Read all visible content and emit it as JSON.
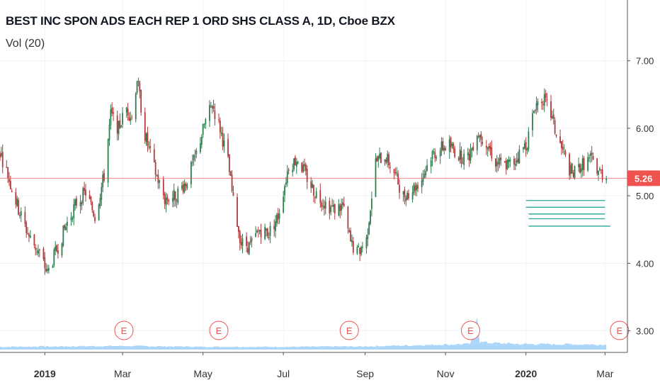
{
  "title": "BEST INC SPON ADS EACH REP 1 ORD SHS CLASS A, 1D, Cboe BZX",
  "volume_label": "Vol (20)",
  "colors": {
    "up": "#2e7d4f",
    "down": "#b23a3a",
    "volume": "#90caf9",
    "price_line": "#ef5350",
    "price_tag": "#ef5350",
    "earnings": "#ef5350",
    "levels": "#26a69a",
    "axis_text": "#333333"
  },
  "chart_data": {
    "type": "candlestick",
    "title": "BEST INC SPON ADS EACH REP 1 ORD SHS CLASS A, 1D, Cboe BZX",
    "x_range": [
      "2018-11-28",
      "2020-03-18"
    ],
    "ylim": [
      2.68,
      7.9
    ],
    "y_ticks": [
      3.0,
      4.0,
      5.0,
      6.0,
      7.0
    ],
    "y_tick_labels": [
      "3.00",
      "4.00",
      "5.00",
      "6.00",
      "7.00"
    ],
    "x_ticks": [
      {
        "label": "2019",
        "date": "2019-01-01",
        "bold": true
      },
      {
        "label": "Mar",
        "date": "2019-03-01",
        "bold": false
      },
      {
        "label": "May",
        "date": "2019-05-01",
        "bold": false
      },
      {
        "label": "Jul",
        "date": "2019-07-01",
        "bold": false
      },
      {
        "label": "Sep",
        "date": "2019-09-01",
        "bold": false
      },
      {
        "label": "Nov",
        "date": "2019-11-01",
        "bold": false
      },
      {
        "label": "2020",
        "date": "2020-01-01",
        "bold": true
      },
      {
        "label": "Mar",
        "date": "2020-03-01",
        "bold": false
      }
    ],
    "last_price": 5.26,
    "last_price_label": "5.26",
    "earnings_marker": "E",
    "earnings_dates": [
      "2019-03-02",
      "2019-05-13",
      "2019-08-20",
      "2019-11-20",
      "2020-03-12"
    ],
    "levels": [
      {
        "y": 4.93,
        "from": "2020-01-01",
        "to": "2020-03-01"
      },
      {
        "y": 4.83,
        "from": "2020-01-01",
        "to": "2020-03-01"
      },
      {
        "y": 4.73,
        "from": "2020-01-03",
        "to": "2020-03-01"
      },
      {
        "y": 4.66,
        "from": "2020-01-03",
        "to": "2020-03-01"
      },
      {
        "y": 4.55,
        "from": "2020-01-03",
        "to": "2020-03-05"
      }
    ],
    "price_path": [
      [
        "2018-11-28",
        5.65
      ],
      [
        "2018-12-04",
        5.3
      ],
      [
        "2018-12-12",
        4.8
      ],
      [
        "2018-12-20",
        4.4
      ],
      [
        "2018-12-28",
        4.15
      ],
      [
        "2019-01-03",
        3.85
      ],
      [
        "2019-01-10",
        4.2
      ],
      [
        "2019-01-18",
        4.6
      ],
      [
        "2019-01-25",
        4.9
      ],
      [
        "2019-02-01",
        5.05
      ],
      [
        "2019-02-08",
        4.7
      ],
      [
        "2019-02-15",
        5.3
      ],
      [
        "2019-02-20",
        6.2
      ],
      [
        "2019-02-26",
        6.0
      ],
      [
        "2019-03-04",
        6.3
      ],
      [
        "2019-03-08",
        6.15
      ],
      [
        "2019-03-12",
        6.75
      ],
      [
        "2019-03-18",
        5.9
      ],
      [
        "2019-03-25",
        5.4
      ],
      [
        "2019-04-02",
        4.95
      ],
      [
        "2019-04-10",
        5.0
      ],
      [
        "2019-04-18",
        5.2
      ],
      [
        "2019-04-25",
        5.55
      ],
      [
        "2019-05-02",
        6.05
      ],
      [
        "2019-05-08",
        6.35
      ],
      [
        "2019-05-14",
        6.0
      ],
      [
        "2019-05-20",
        5.5
      ],
      [
        "2019-05-24",
        4.9
      ],
      [
        "2019-05-30",
        4.3
      ],
      [
        "2019-06-06",
        4.25
      ],
      [
        "2019-06-13",
        4.5
      ],
      [
        "2019-06-20",
        4.45
      ],
      [
        "2019-06-27",
        4.7
      ],
      [
        "2019-07-05",
        5.45
      ],
      [
        "2019-07-12",
        5.55
      ],
      [
        "2019-07-18",
        5.3
      ],
      [
        "2019-07-25",
        5.05
      ],
      [
        "2019-08-01",
        4.9
      ],
      [
        "2019-08-08",
        4.8
      ],
      [
        "2019-08-15",
        4.85
      ],
      [
        "2019-08-21",
        4.3
      ],
      [
        "2019-08-26",
        4.15
      ],
      [
        "2019-09-02",
        4.35
      ],
      [
        "2019-09-09",
        5.5
      ],
      [
        "2019-09-16",
        5.6
      ],
      [
        "2019-09-23",
        5.35
      ],
      [
        "2019-09-30",
        5.0
      ],
      [
        "2019-10-07",
        5.1
      ],
      [
        "2019-10-14",
        5.25
      ],
      [
        "2019-10-21",
        5.6
      ],
      [
        "2019-10-28",
        5.7
      ],
      [
        "2019-11-04",
        5.75
      ],
      [
        "2019-11-11",
        5.6
      ],
      [
        "2019-11-18",
        5.55
      ],
      [
        "2019-11-25",
        5.95
      ],
      [
        "2019-12-02",
        5.8
      ],
      [
        "2019-12-09",
        5.5
      ],
      [
        "2019-12-16",
        5.45
      ],
      [
        "2019-12-23",
        5.5
      ],
      [
        "2020-01-02",
        5.8
      ],
      [
        "2020-01-08",
        6.35
      ],
      [
        "2020-01-14",
        6.45
      ],
      [
        "2020-01-20",
        6.2
      ],
      [
        "2020-01-24",
        5.9
      ],
      [
        "2020-01-30",
        5.6
      ],
      [
        "2020-02-05",
        5.3
      ],
      [
        "2020-02-12",
        5.45
      ],
      [
        "2020-02-19",
        5.55
      ],
      [
        "2020-02-24",
        5.4
      ],
      [
        "2020-03-02",
        5.26
      ]
    ],
    "volume_path": [
      [
        "2018-11-28",
        0.03
      ],
      [
        "2019-01-15",
        0.035
      ],
      [
        "2019-03-01",
        0.04
      ],
      [
        "2019-05-01",
        0.03
      ],
      [
        "2019-07-01",
        0.03
      ],
      [
        "2019-09-01",
        0.035
      ],
      [
        "2019-10-15",
        0.05
      ],
      [
        "2019-11-20",
        0.06
      ],
      [
        "2019-11-25",
        0.42
      ],
      [
        "2019-11-27",
        0.08
      ],
      [
        "2019-12-10",
        0.07
      ],
      [
        "2020-01-01",
        0.06
      ],
      [
        "2020-03-02",
        0.055
      ]
    ]
  }
}
